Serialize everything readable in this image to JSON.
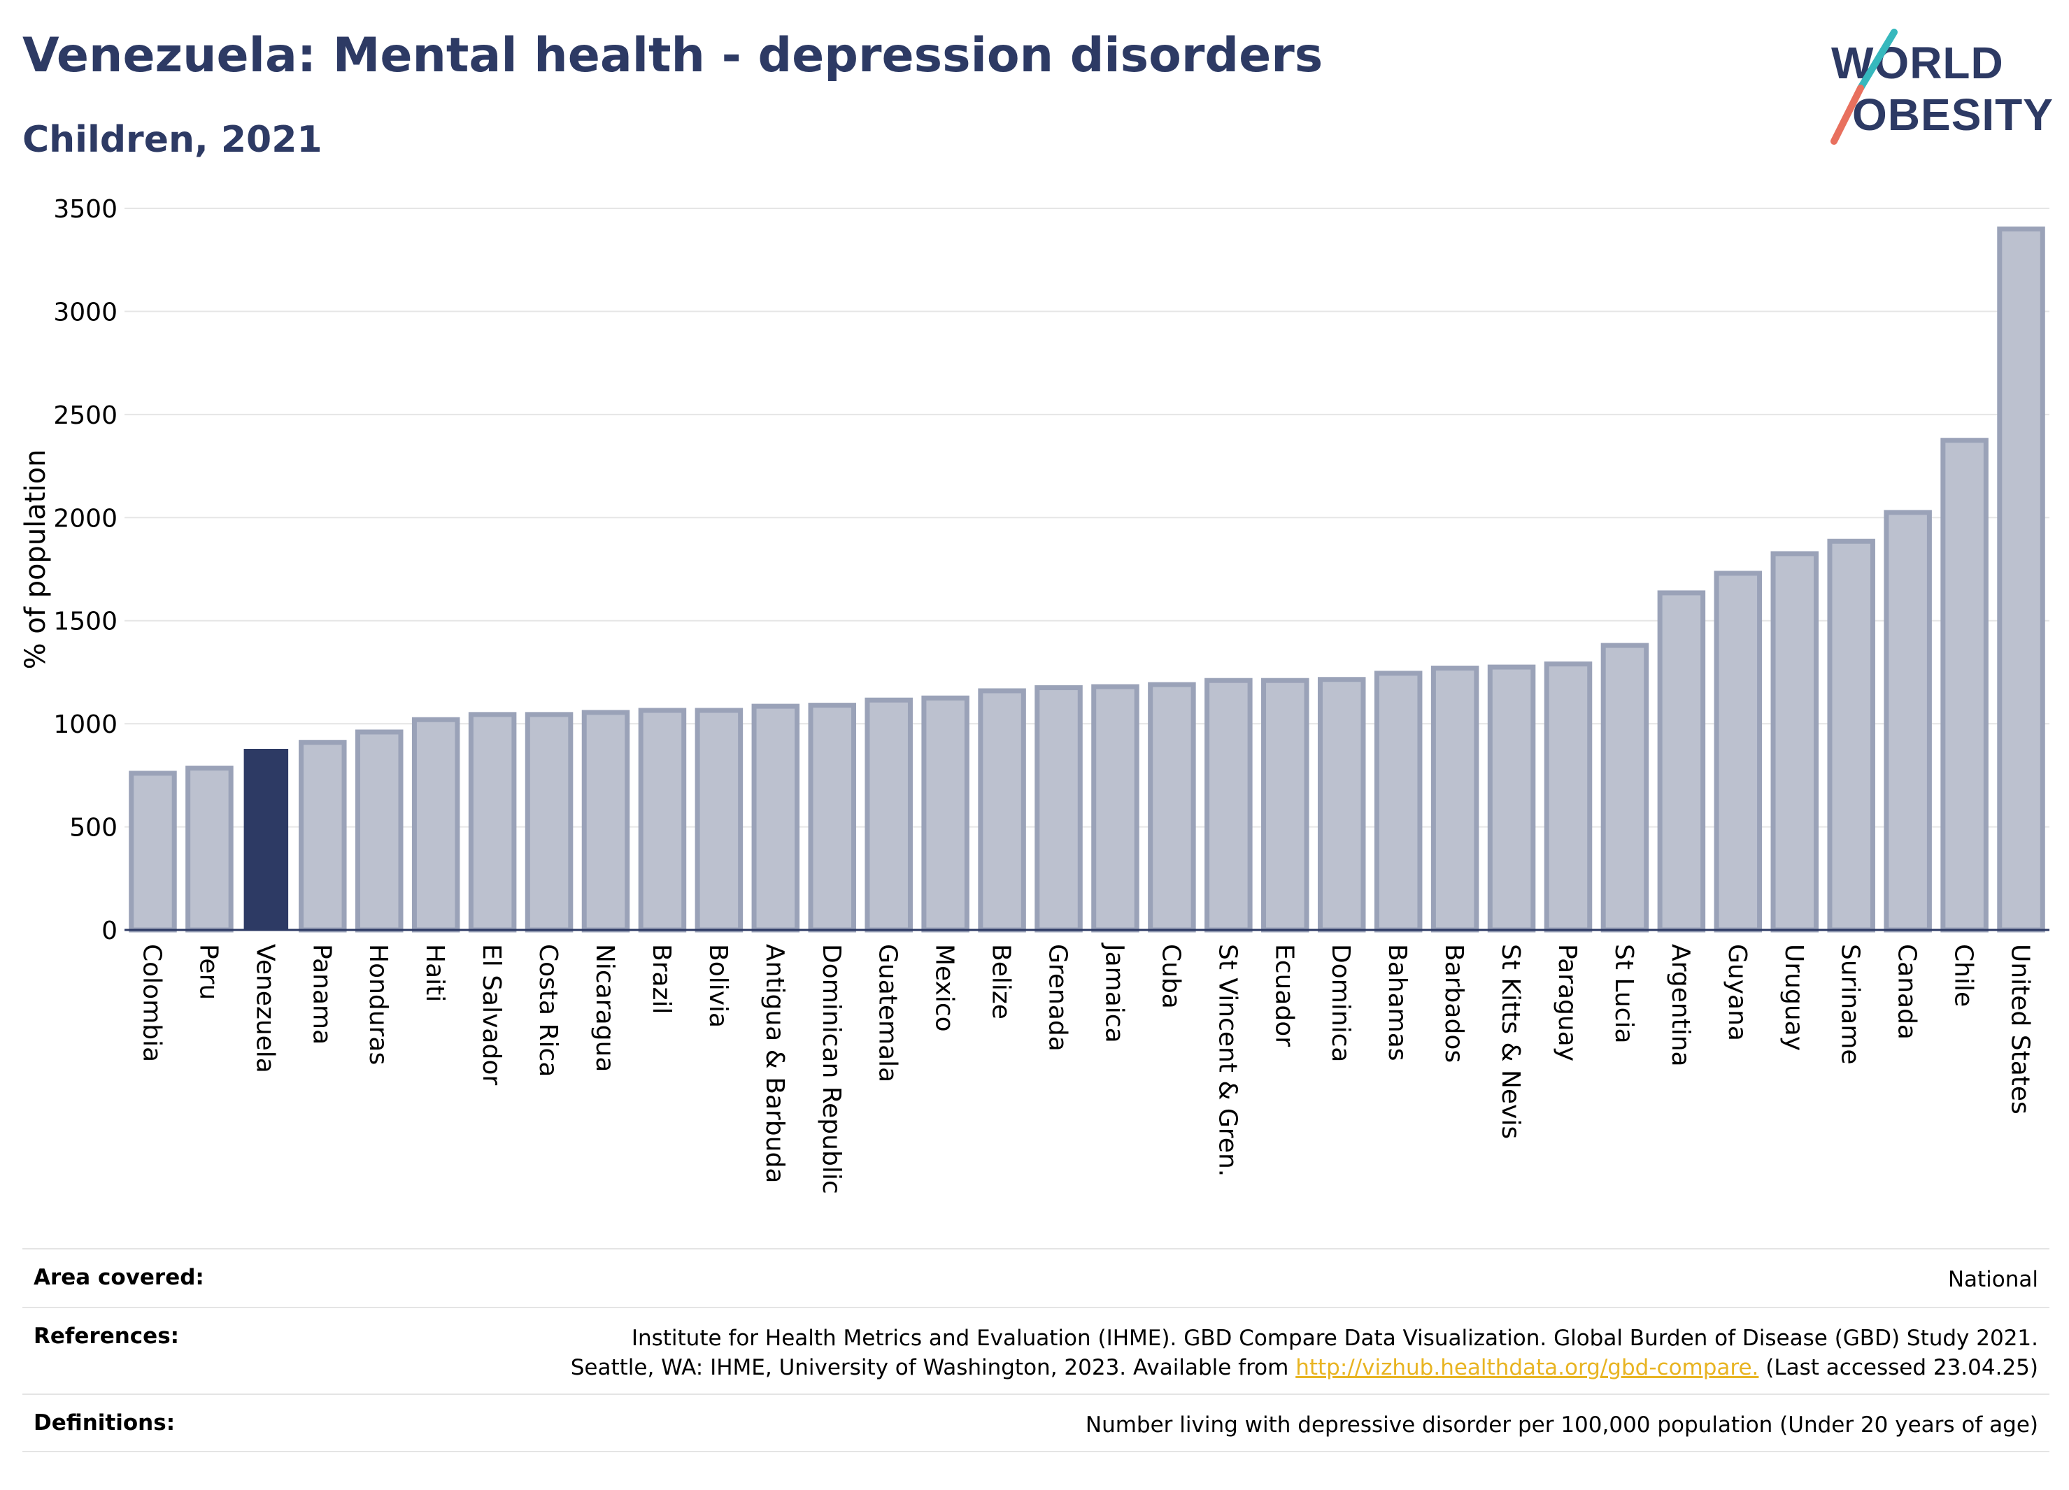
{
  "header": {
    "title": "Venezuela: Mental health - depression disorders",
    "subtitle": "Children, 2021"
  },
  "logo": {
    "line1": "WORLD",
    "line2": "OBESITY"
  },
  "colors": {
    "title": "#2d3a64",
    "highlight_bar": "#2d3a64",
    "other_bar_fill": "#bcc1cf",
    "other_bar_stroke": "#9aa2b8",
    "logo_teal": "#36b8bd",
    "logo_coral": "#e8705e",
    "link": "#e8b422"
  },
  "chart_data": {
    "type": "bar",
    "ylabel": "% of population",
    "ylim": [
      0,
      3500
    ],
    "yticks": [
      0,
      500,
      1000,
      1500,
      2000,
      2500,
      3000,
      3500
    ],
    "grid": true,
    "highlight": "Venezuela",
    "categories": [
      "Colombia",
      "Peru",
      "Venezuela",
      "Panama",
      "Honduras",
      "Haiti",
      "El Salvador",
      "Costa Rica",
      "Nicaragua",
      "Brazil",
      "Bolivia",
      "Antigua & Barbuda",
      "Dominican Republic",
      "Guatemala",
      "Mexico",
      "Belize",
      "Grenada",
      "Jamaica",
      "Cuba",
      "St Vincent & Gren.",
      "Ecuador",
      "Dominica",
      "Bahamas",
      "Barbados",
      "St Kitts & Nevis",
      "Paraguay",
      "St Lucia",
      "Argentina",
      "Guyana",
      "Uruguay",
      "Suriname",
      "Canada",
      "Chile",
      "United States"
    ],
    "values": [
      760,
      785,
      875,
      910,
      960,
      1020,
      1045,
      1045,
      1055,
      1065,
      1065,
      1085,
      1090,
      1115,
      1125,
      1160,
      1175,
      1180,
      1190,
      1210,
      1210,
      1215,
      1245,
      1270,
      1275,
      1290,
      1380,
      1635,
      1730,
      1825,
      1885,
      2025,
      2375,
      3400
    ]
  },
  "footer": {
    "area_label": "Area covered:",
    "area_value": "National",
    "references_label": "References:",
    "references_line1": "Institute for Health Metrics and Evaluation (IHME). GBD Compare Data Visualization. Global Burden of Disease (GBD) Study 2021.",
    "references_line2_pre": "Seattle, WA: IHME, University of Washington, 2023. Available from ",
    "references_link": "http://vizhub.healthdata.org/gbd-compare.",
    "references_line2_post": " (Last accessed 23.04.25)",
    "definitions_label": "Definitions:",
    "definitions_value": "Number living with depressive disorder per 100,000 population (Under 20 years of age)"
  }
}
